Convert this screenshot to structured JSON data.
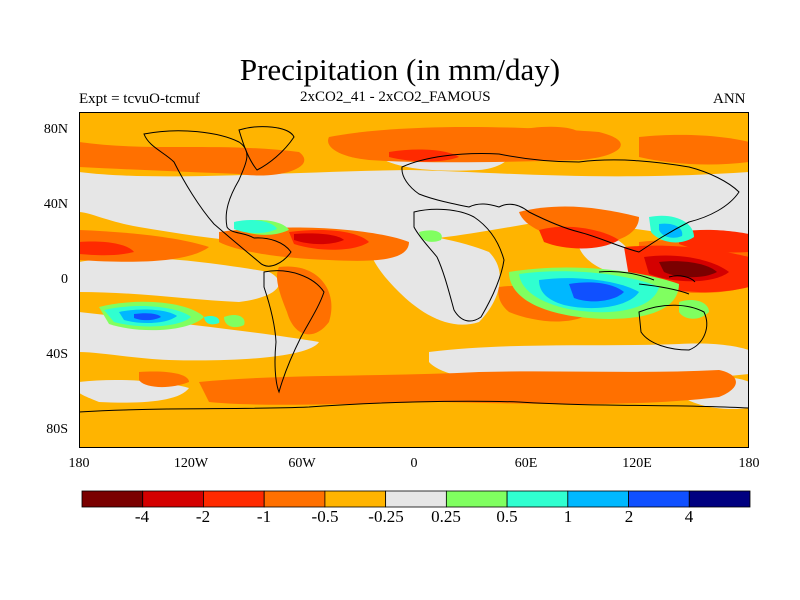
{
  "title": "Precipitation (in mm/day)",
  "subtitle": "2xCO2_41 - 2xCO2_FAMOUS",
  "left_label": "Expt = tcvuO-tcmuf",
  "right_label": "ANN",
  "lat_ticks": [
    "80N",
    "40N",
    "0",
    "40S",
    "80S"
  ],
  "lon_ticks": [
    "180",
    "120W",
    "60W",
    "0",
    "60E",
    "120E",
    "180"
  ],
  "colorbar": {
    "colors": [
      "#7a0000",
      "#d40000",
      "#ff2a00",
      "#ff7000",
      "#ffb400",
      "#e6e6e6",
      "#80ff60",
      "#30ffd0",
      "#00b8ff",
      "#1050ff",
      "#000080"
    ],
    "labels": [
      "-4",
      "-2",
      "-1",
      "-0.5",
      "-0.25",
      "0.25",
      "0.5",
      "1",
      "2",
      "4"
    ]
  }
}
